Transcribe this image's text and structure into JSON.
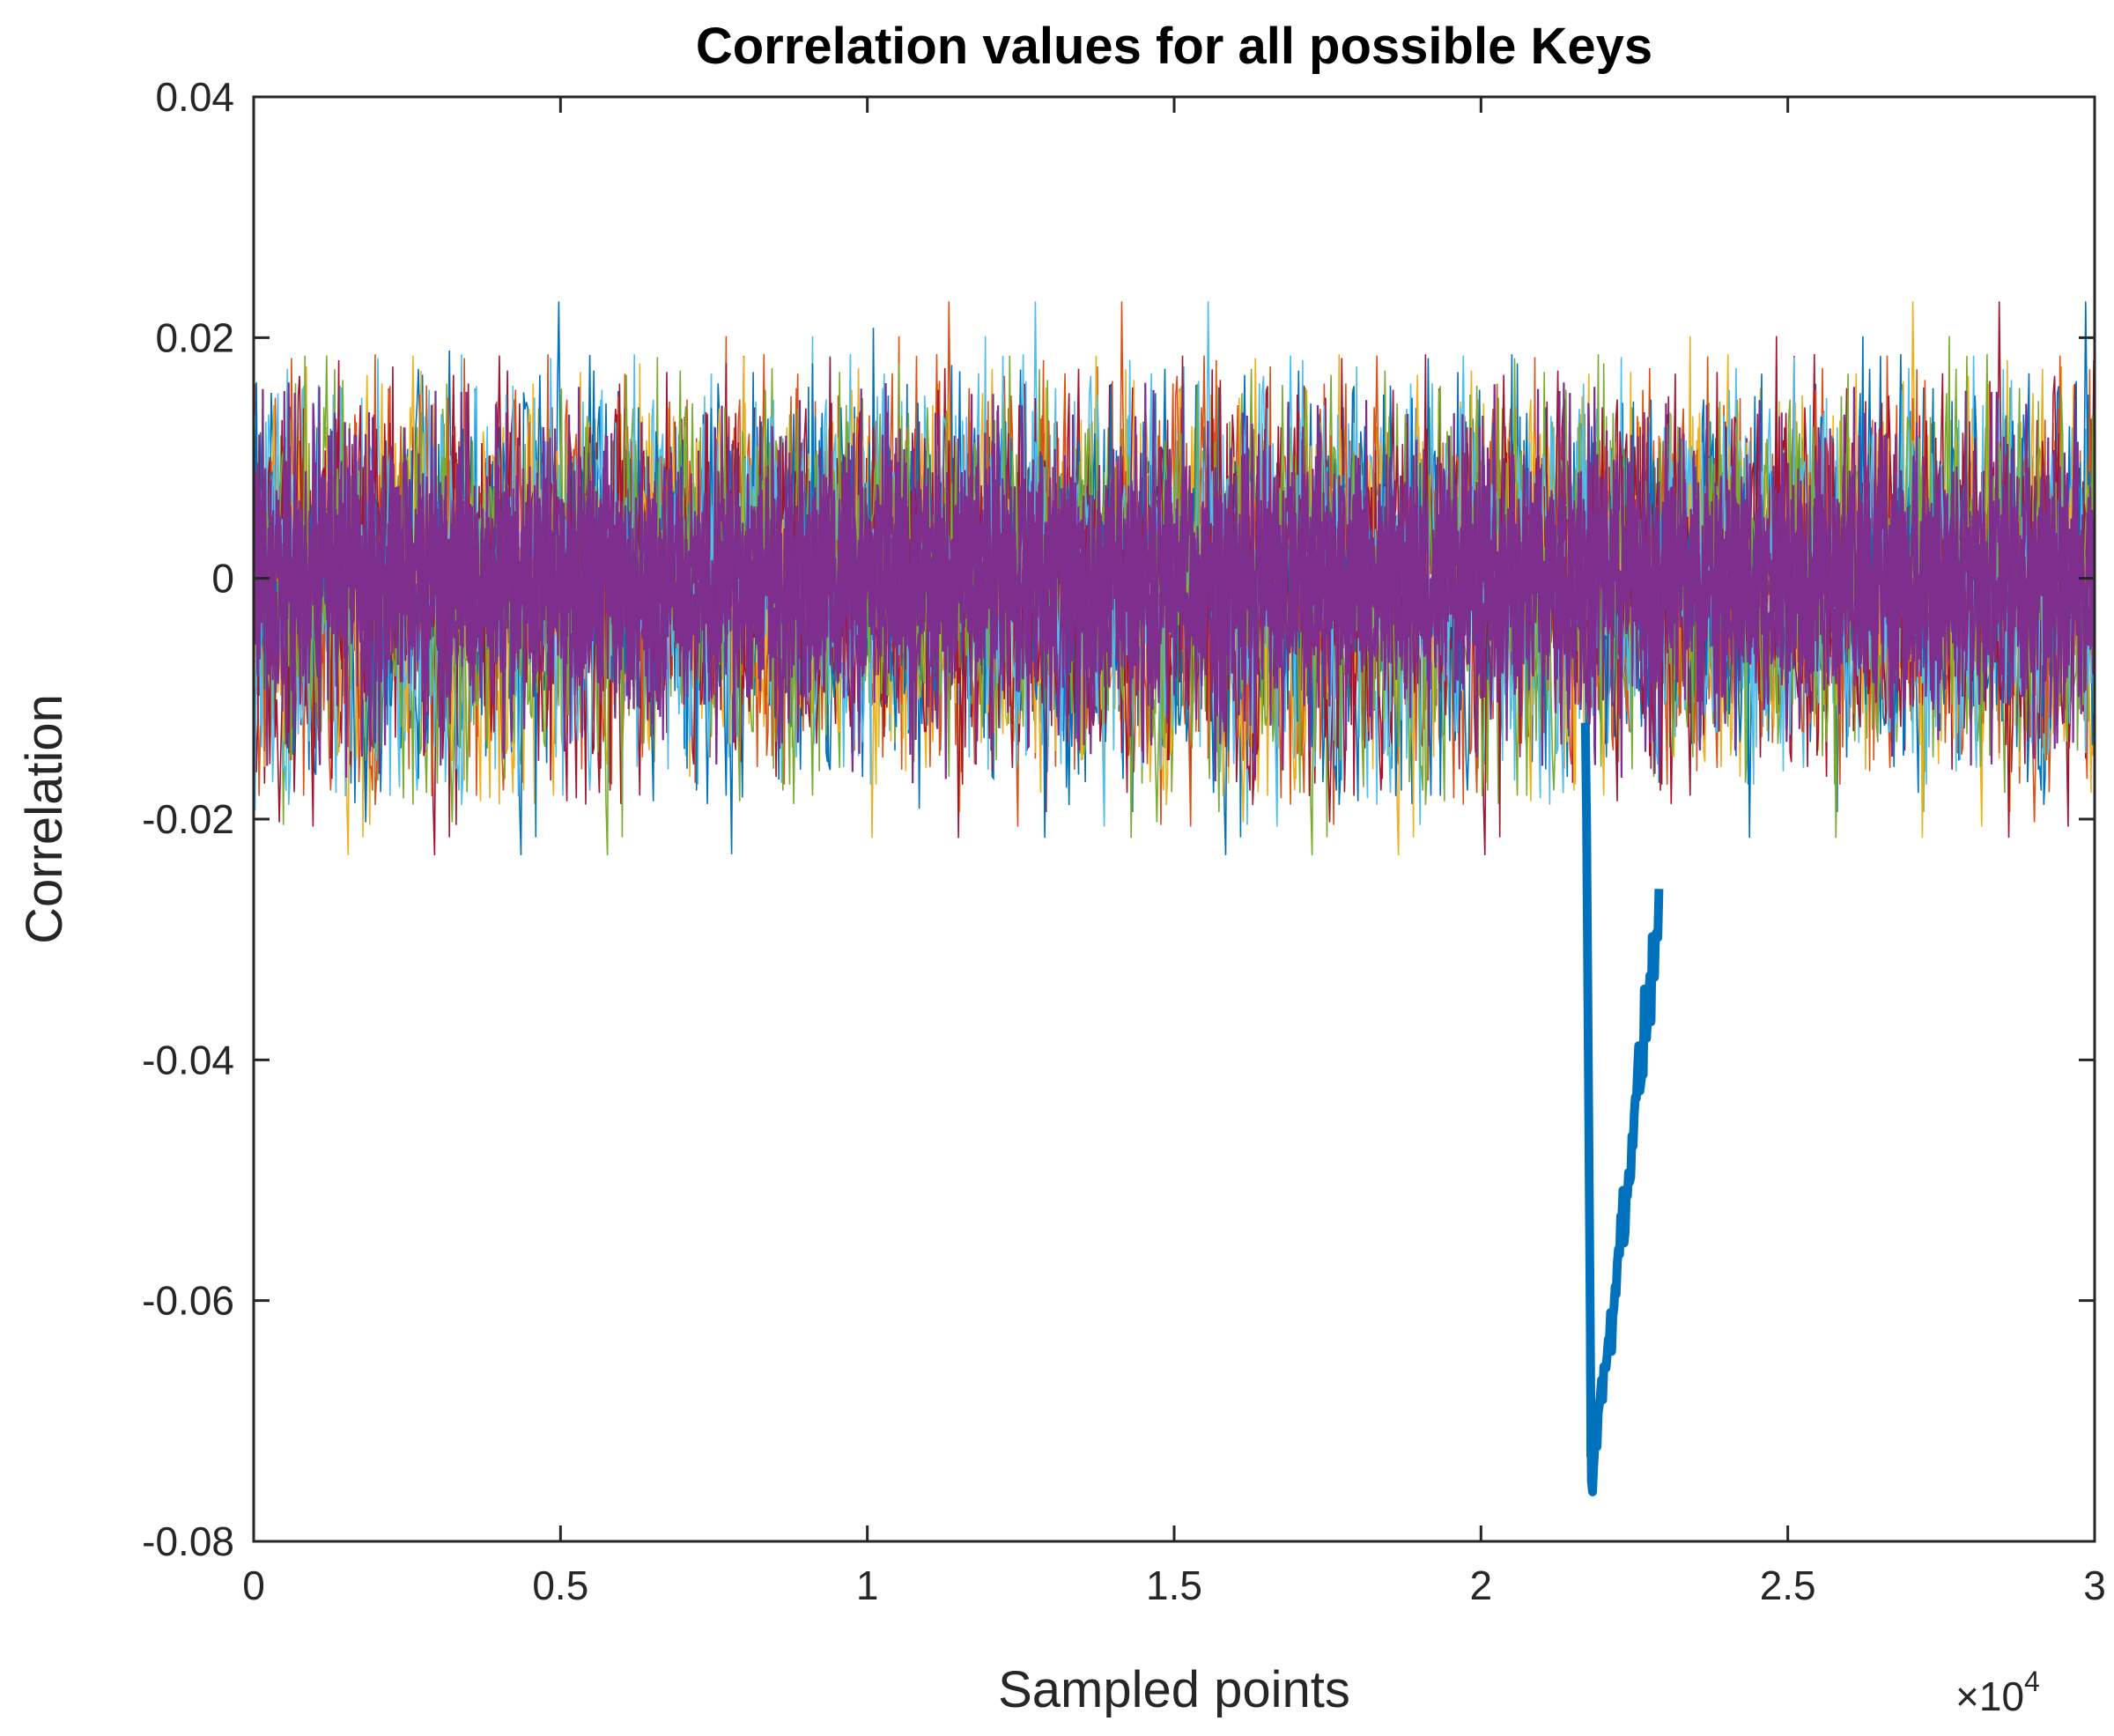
{
  "chart_data": {
    "type": "line",
    "title": "Correlation values for all possible Keys",
    "xlabel": "Sampled points",
    "ylabel": "Correlation",
    "xlim": [
      0,
      30000
    ],
    "ylim": [
      -0.08,
      0.04
    ],
    "x_tick_values": [
      0,
      5000,
      10000,
      15000,
      20000,
      25000,
      30000
    ],
    "x_tick_labels": [
      "0",
      "0.5",
      "1",
      "1.5",
      "2",
      "2.5",
      "3"
    ],
    "y_tick_values": [
      0.04,
      0.02,
      0,
      -0.02,
      -0.04,
      -0.06,
      -0.08
    ],
    "y_tick_labels": [
      "0.04",
      "0.02",
      "0",
      "-0.02",
      "-0.04",
      "-0.06",
      "-0.08"
    ],
    "x_multiplier": {
      "base": "×10",
      "exponent": "4"
    },
    "grid": false,
    "legend": "none",
    "series_description": {
      "n_keys": 256,
      "noise_band_typical": [
        -0.018,
        0.018
      ],
      "noise_band_extreme": [
        -0.022,
        0.023
      ],
      "colors": [
        "#0072BD",
        "#D95319",
        "#EDB120",
        "#7E2F8E",
        "#77AC30",
        "#4DBEEE",
        "#A2142F"
      ]
    },
    "correct_key_peak": {
      "color": "#0072BD",
      "x_start": 21700,
      "x_min": 21800,
      "y_min": -0.075,
      "x_end": 22900,
      "y_end": -0.028
    }
  }
}
